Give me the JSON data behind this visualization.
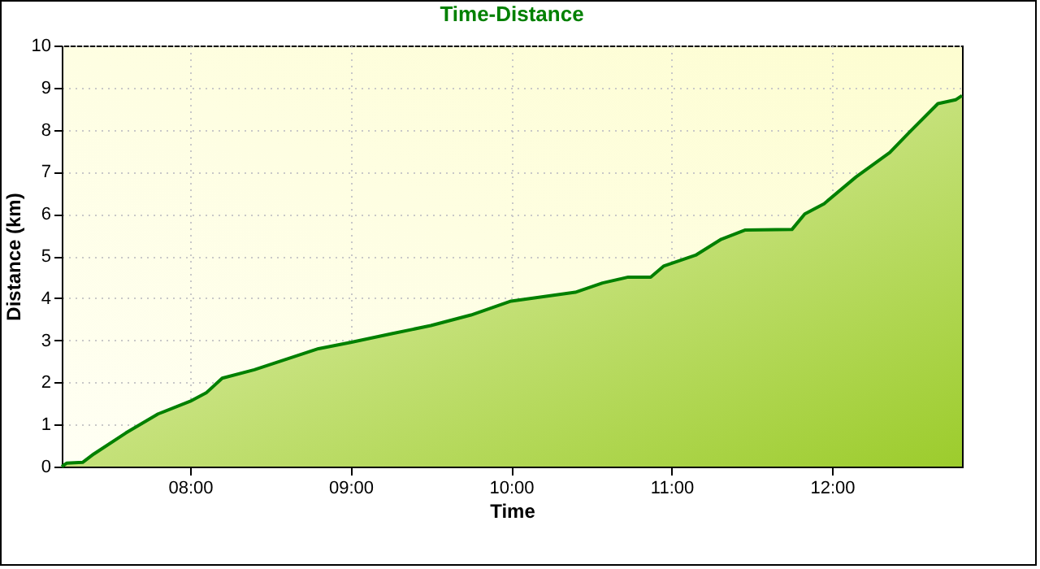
{
  "chart_data": {
    "type": "area",
    "title": "Time-Distance",
    "xlabel": "Time",
    "ylabel": "Distance (km)",
    "x": [
      7.2,
      7.23,
      7.33,
      7.4,
      7.6,
      7.8,
      8.0,
      8.1,
      8.2,
      8.4,
      8.6,
      8.8,
      9.0,
      9.25,
      9.5,
      9.75,
      10.0,
      10.4,
      10.57,
      10.73,
      10.87,
      10.95,
      11.15,
      11.31,
      11.46,
      11.75,
      11.83,
      11.95,
      12.15,
      12.36,
      12.49,
      12.66,
      12.77,
      12.81
    ],
    "series": [
      {
        "color": "#008000",
        "values": [
          0,
          0.08,
          0.1,
          0.3,
          0.8,
          1.25,
          1.55,
          1.75,
          2.1,
          2.3,
          2.55,
          2.8,
          2.95,
          3.15,
          3.35,
          3.6,
          3.93,
          4.14,
          4.36,
          4.5,
          4.5,
          4.76,
          5.02,
          5.4,
          5.62,
          5.63,
          6.0,
          6.24,
          6.88,
          7.46,
          7.97,
          8.62,
          8.71,
          8.81
        ]
      }
    ],
    "xlim": [
      7.2,
      12.81
    ],
    "xticks": [
      {
        "value": 8,
        "label": "08:00"
      },
      {
        "value": 9,
        "label": "09:00"
      },
      {
        "value": 10,
        "label": "10:00"
      },
      {
        "value": 11,
        "label": "11:00"
      },
      {
        "value": 12,
        "label": "12:00"
      }
    ],
    "ylim": [
      0,
      10
    ],
    "yticks": [
      0,
      1,
      2,
      3,
      4,
      5,
      6,
      7,
      8,
      9,
      10
    ],
    "grid": true,
    "line_style": "solid"
  }
}
